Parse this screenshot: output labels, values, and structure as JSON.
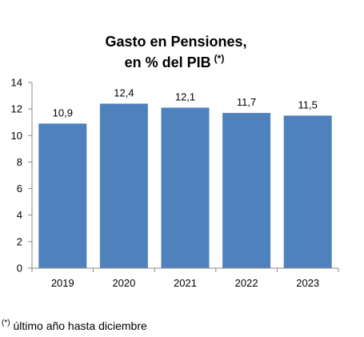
{
  "chart_data": {
    "type": "bar",
    "title_line1": "Gasto en Pensiones,",
    "title_line2": "en % del PIB",
    "title_marker": "(*)",
    "categories": [
      "2019",
      "2020",
      "2021",
      "2022",
      "2023"
    ],
    "values": [
      10.9,
      12.4,
      12.1,
      11.7,
      11.5
    ],
    "value_labels": [
      "10,9",
      "12,4",
      "12,1",
      "11,7",
      "11,5"
    ],
    "ylim": [
      0,
      14
    ],
    "yticks": [
      0,
      2,
      4,
      6,
      8,
      10,
      12,
      14
    ],
    "xlabel": "",
    "ylabel": "",
    "grid": false,
    "bar_color": "#4f81bd"
  },
  "footnote": {
    "marker": "(*)",
    "text": "último año hasta diciembre"
  }
}
